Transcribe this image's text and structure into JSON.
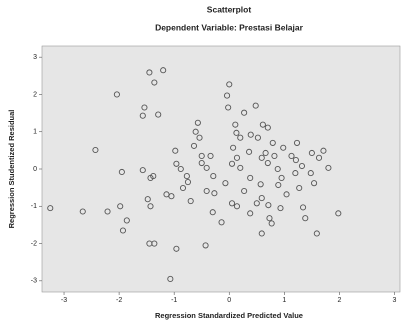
{
  "chart_data": {
    "type": "scatter",
    "title": "Scatterplot",
    "subtitle": "Dependent Variable: Prestasi Belajar",
    "x_label": "Regression Standardized Predicted Value",
    "y_label": "Regression Studentized Residual",
    "xlim": [
      -3.4,
      3.1
    ],
    "ylim": [
      -3.3,
      3.3
    ],
    "xticks": [
      -3,
      -2,
      -1,
      0,
      1,
      2,
      3
    ],
    "yticks": [
      -3,
      -2,
      -1,
      0,
      1,
      2,
      3
    ],
    "color": "#555555",
    "background": "#e6e6e6",
    "x": [
      -2.43,
      -2.04,
      -1.95,
      -2.21,
      -1.98,
      -1.86,
      -1.93,
      -1.45,
      -1.36,
      -1.2,
      -1.57,
      -1.54,
      -1.29,
      -1.57,
      -1.43,
      -1.38,
      -1.48,
      -1.43,
      -1.36,
      -1.45,
      -1.07,
      -0.96,
      -1.14,
      -1.05,
      -0.96,
      -0.98,
      -0.77,
      -0.88,
      -0.75,
      -0.64,
      -0.61,
      -0.57,
      -0.5,
      -0.5,
      -0.41,
      -0.34,
      -0.29,
      -0.41,
      -0.27,
      -0.3,
      -0.14,
      -0.07,
      -0.04,
      0,
      -0.02,
      0.11,
      0.13,
      0.2,
      0.07,
      0.14,
      0.05,
      0.2,
      0.27,
      0.39,
      0.36,
      0.38,
      0.27,
      0.14,
      0.48,
      0.52,
      0.61,
      0.59,
      0.66,
      0.7,
      0.7,
      0.82,
      0.79,
      0.88,
      0.89,
      0.98,
      0.95,
      1.04,
      0.93,
      0.57,
      0.59,
      0.77,
      0.71,
      1.13,
      1.23,
      1.2,
      1.27,
      1.21,
      1.32,
      1.34,
      1.38,
      1.5,
      1.48,
      1.54,
      1.59,
      1.63,
      1.71,
      1.8,
      0.73,
      0.5,
      0.38,
      0.05,
      -0.43,
      0.59,
      -0.54,
      -0.84,
      -0.7,
      1.98,
      -3.25,
      -2.66
    ],
    "values": [
      0.51,
      2,
      -0.08,
      -1.14,
      -1,
      -1.38,
      -1.65,
      2.59,
      2.32,
      2.65,
      1.43,
      1.65,
      1.46,
      -0.03,
      -0.24,
      -0.19,
      -0.81,
      -1,
      -2,
      -2,
      -2.95,
      -2.14,
      -0.68,
      -0.73,
      0.14,
      0.49,
      -0.19,
      0,
      -0.35,
      0.62,
      1,
      1.24,
      0.35,
      0.16,
      0.03,
      0.35,
      -0.19,
      -0.59,
      -0.65,
      -1.16,
      -1.43,
      -0.38,
      1.97,
      2.27,
      1.65,
      1.19,
      0.97,
      0.84,
      0.57,
      0.3,
      0.14,
      0.03,
      1.51,
      0.92,
      0.46,
      -0.24,
      -0.59,
      -1,
      1.7,
      0.84,
      1.19,
      0.3,
      0.43,
      0.16,
      1.11,
      0.35,
      0.7,
      0,
      -0.43,
      0.57,
      -0.24,
      -0.68,
      -1.05,
      -0.41,
      -0.78,
      -1.46,
      -0.97,
      0.35,
      0.7,
      -0.11,
      -0.51,
      0.24,
      0.08,
      -1.03,
      -1.32,
      0.43,
      -0.11,
      -0.38,
      -1.73,
      0.3,
      0.49,
      0.03,
      -1.32,
      -0.92,
      -1.19,
      -0.92,
      -2.05,
      -1.73,
      0.84,
      -0.51,
      -0.86,
      -1.19,
      -1.05,
      -1.14
    ]
  }
}
